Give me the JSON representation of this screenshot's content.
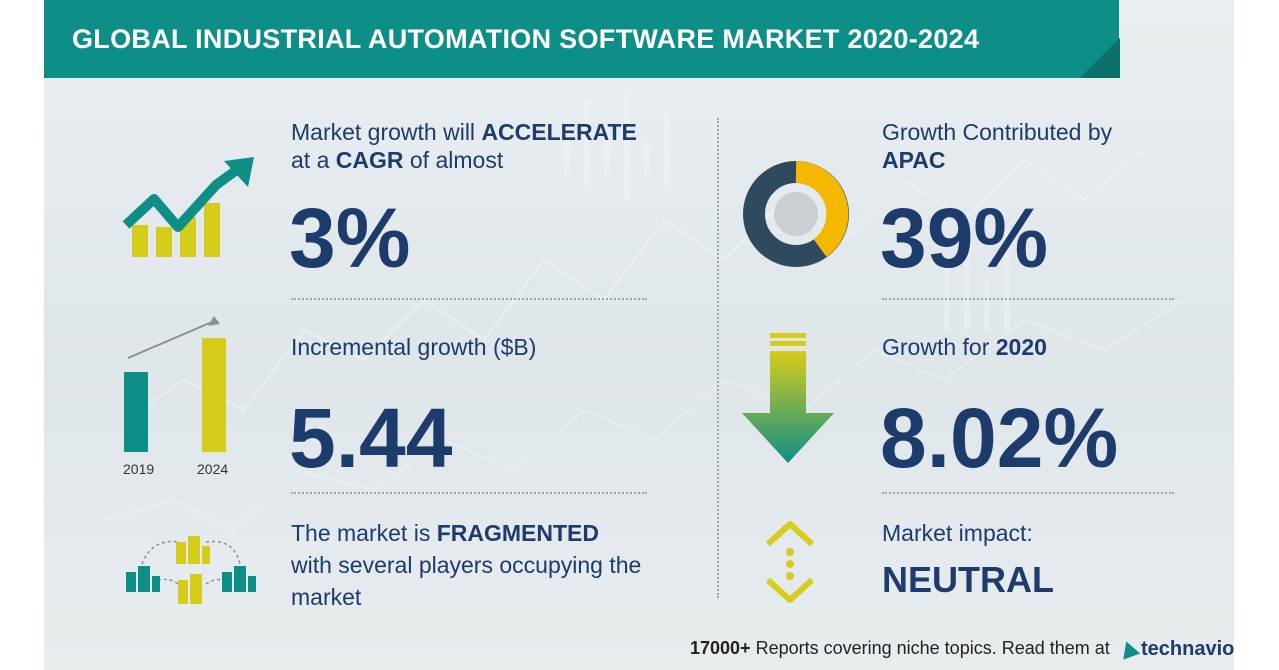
{
  "title": "GLOBAL INDUSTRIAL AUTOMATION SOFTWARE MARKET 2020-2024",
  "left": {
    "growth_pre": "Market growth will ",
    "growth_bold": "ACCELERATE",
    "cagr_pre": "at a ",
    "cagr_bold": "CAGR",
    "cagr_post": " of almost",
    "cagr_value": "3%",
    "incremental_label": "Incremental growth ($B)",
    "incremental_value": "5.44",
    "year_start": "2019",
    "year_end": "2024",
    "fragmented_pre": "The market is ",
    "fragmented_bold": "FRAGMENTED",
    "fragmented_line2": "with several players occupying the",
    "fragmented_line3": "market"
  },
  "right": {
    "contrib_line1": "Growth Contributed by",
    "contrib_region": "APAC",
    "contrib_value": "39%",
    "growth_for_label": "Growth for ",
    "growth_for_year": "2020",
    "growth_for_value": "8.02%",
    "impact_label": "Market impact:",
    "impact_value": "NEUTRAL"
  },
  "footer": {
    "count": "17000+",
    "text": " Reports covering niche topics. Read them at",
    "brand": "technavio"
  },
  "colors": {
    "teal": "#0d8f87",
    "navy": "#1d3b6b",
    "yellow": "#d6cd1a",
    "donut_dark": "#2f4a5e",
    "donut_yellow": "#f5b800"
  },
  "icons": [
    "trend-chart-icon",
    "bar-growth-icon",
    "network-buildings-icon",
    "donut-icon",
    "down-arrow-icon",
    "neutral-arrows-icon",
    "technavio-logo"
  ]
}
